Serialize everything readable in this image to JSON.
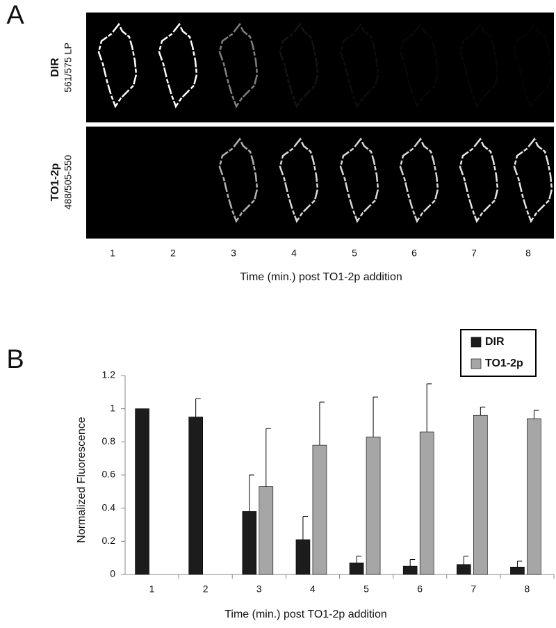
{
  "panel_a": {
    "label": "A",
    "rows": [
      {
        "name": "DIR",
        "filter": "561/575 LP"
      },
      {
        "name": "TO1-2p",
        "filter": "488/505-550"
      }
    ],
    "columns": [
      "1",
      "2",
      "3",
      "4",
      "5",
      "6",
      "7",
      "8"
    ],
    "x_label": "Time (min.) post TO1-2p addition"
  },
  "chart_data": {
    "type": "bar",
    "panel_label": "B",
    "x_label": "Time (min.) post TO1-2p addition",
    "y_label": "Normalized Fluorescence",
    "categories": [
      "1",
      "2",
      "3",
      "4",
      "5",
      "6",
      "7",
      "8"
    ],
    "series": [
      {
        "name": "DIR",
        "color": "#1c1c1c",
        "values": [
          1,
          0.95,
          0.38,
          0.21,
          0.07,
          0.05,
          0.06,
          0.045
        ],
        "errors": [
          null,
          0.11,
          0.22,
          0.14,
          0.04,
          0.04,
          0.05,
          0.035
        ]
      },
      {
        "name": "TO1-2p",
        "color": "#a6a6a6",
        "values": [
          null,
          null,
          0.53,
          0.78,
          0.83,
          0.86,
          0.96,
          0.94
        ],
        "errors": [
          null,
          null,
          0.35,
          0.26,
          0.24,
          0.29,
          0.05,
          0.05
        ]
      }
    ],
    "ylim": [
      0,
      1.2
    ],
    "yticks": [
      0,
      0.2,
      0.4,
      0.6,
      0.8,
      1,
      1.2
    ],
    "grid": false,
    "legend": "top-right"
  }
}
